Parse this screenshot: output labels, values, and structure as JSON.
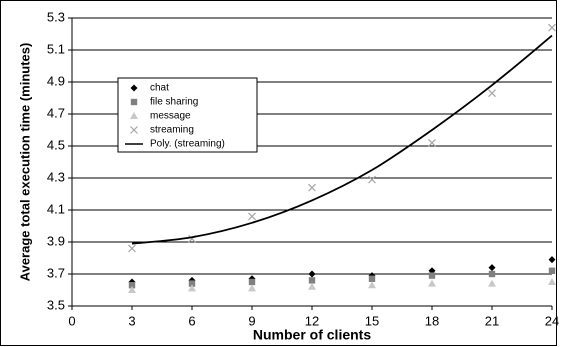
{
  "chart_data": {
    "type": "scatter",
    "x_label": "Number of clients",
    "y_label": "Average total execution time (minutes)",
    "x": [
      3,
      6,
      9,
      12,
      15,
      18,
      21,
      24
    ],
    "series": [
      {
        "name": "chat",
        "color": "#000000",
        "marker": "diamond",
        "values": [
          3.65,
          3.66,
          3.67,
          3.7,
          3.69,
          3.72,
          3.74,
          3.79
        ]
      },
      {
        "name": "file sharing",
        "color": "#808080",
        "marker": "square",
        "values": [
          3.63,
          3.64,
          3.65,
          3.66,
          3.67,
          3.69,
          3.7,
          3.72
        ]
      },
      {
        "name": "message",
        "color": "#c8c8c8",
        "marker": "triangle",
        "values": [
          3.6,
          3.61,
          3.61,
          3.62,
          3.63,
          3.64,
          3.64,
          3.65
        ]
      },
      {
        "name": "streaming",
        "color": "#a6a6a6",
        "marker": "x",
        "values": [
          3.86,
          3.92,
          4.06,
          4.24,
          4.29,
          4.52,
          4.83,
          5.24
        ]
      },
      {
        "name": "Poly. (streaming)",
        "color": "#000000",
        "marker": "line",
        "values": [
          3.89,
          3.93,
          4.02,
          4.16,
          4.35,
          4.6,
          4.88,
          5.19
        ]
      }
    ],
    "xlim": [
      0,
      24
    ],
    "xticks": [
      0,
      3,
      6,
      9,
      12,
      15,
      18,
      21,
      24
    ],
    "ylim": [
      3.5,
      5.3
    ],
    "yticks": [
      3.5,
      3.7,
      3.9,
      4.1,
      4.3,
      4.5,
      4.7,
      4.9,
      5.1,
      5.3
    ],
    "grid": true,
    "legend": "upper left"
  }
}
